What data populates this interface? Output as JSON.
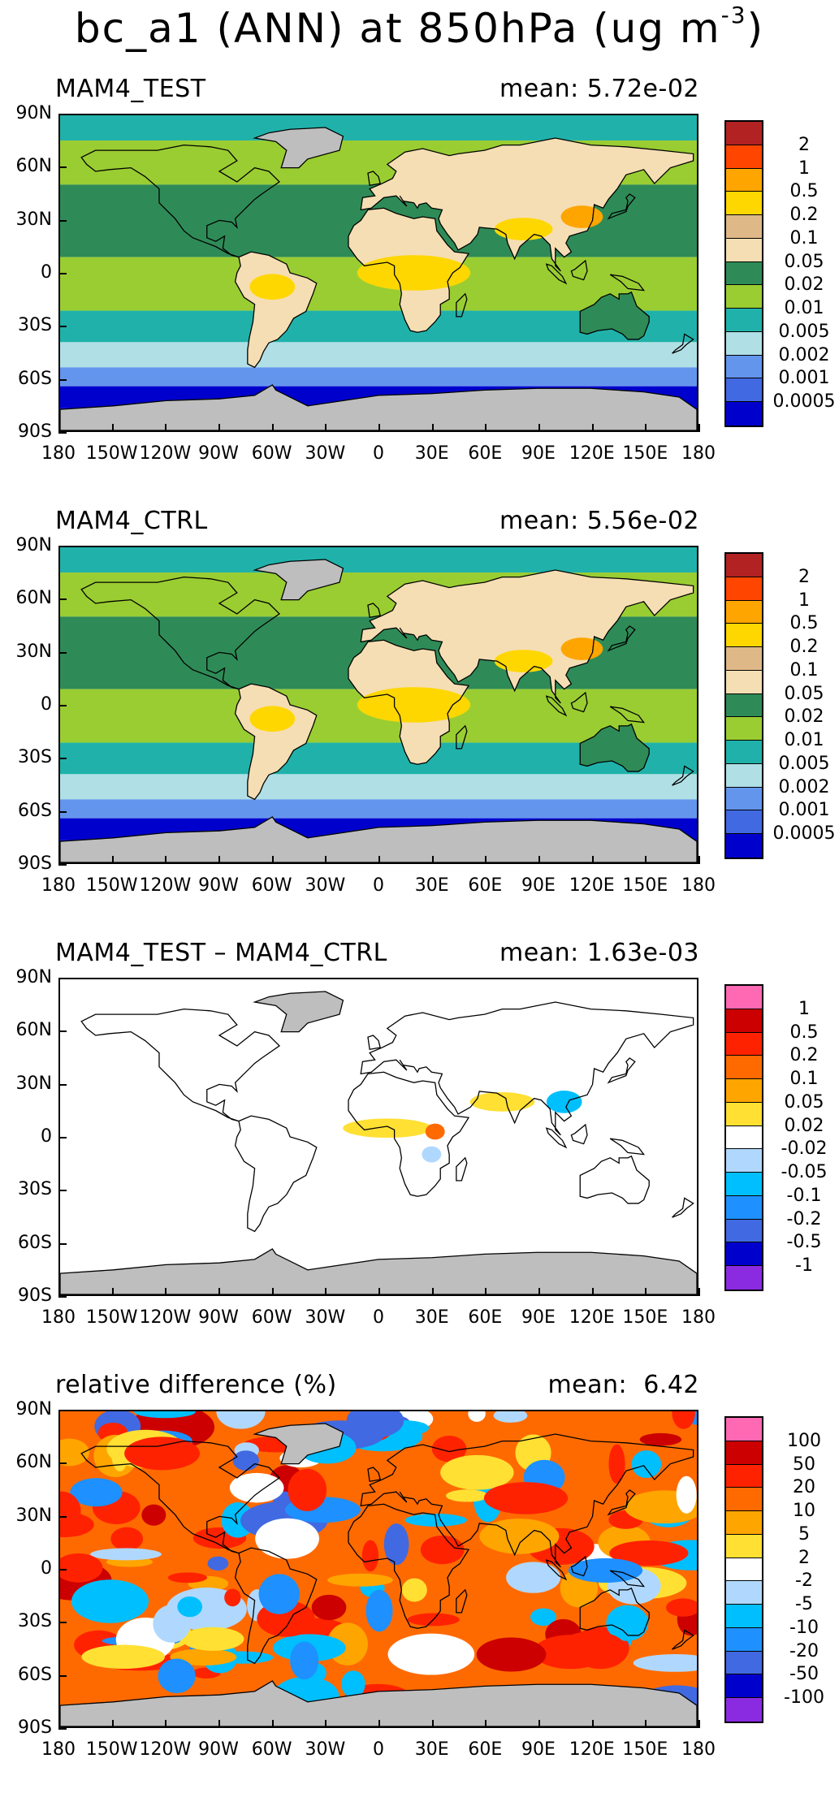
{
  "figure": {
    "title_main": "bc_a1 (ANN) at 850hPa (ug m",
    "title_exp": "-3",
    "title_close": ")"
  },
  "lat_labels": [
    "90N",
    "60N",
    "30N",
    "0",
    "30S",
    "60S",
    "90S"
  ],
  "lon_labels": [
    "180",
    "150W",
    "120W",
    "90W",
    "60W",
    "30W",
    "0",
    "30E",
    "60E",
    "90E",
    "120E",
    "150E",
    "180"
  ],
  "panels": [
    {
      "id": "test",
      "title": "MAM4_TEST",
      "mean_text": "mean: 5.72e-02",
      "colorbar": {
        "colors": [
          "#b22222",
          "#ff4500",
          "#ffa500",
          "#ffd700",
          "#deb887",
          "#f5deb3",
          "#2e8b57",
          "#9acd32",
          "#20b2aa",
          "#b0e0e6",
          "#6495ed",
          "#4169e1",
          "#0000cd"
        ],
        "labels": [
          "2",
          "1",
          "0.5",
          "0.2",
          "0.1",
          "0.05",
          "0.02",
          "0.01",
          "0.005",
          "0.002",
          "0.001",
          "0.0005"
        ]
      }
    },
    {
      "id": "ctrl",
      "title": "MAM4_CTRL",
      "mean_text": "mean: 5.56e-02",
      "colorbar": {
        "colors": [
          "#b22222",
          "#ff4500",
          "#ffa500",
          "#ffd700",
          "#deb887",
          "#f5deb3",
          "#2e8b57",
          "#9acd32",
          "#20b2aa",
          "#b0e0e6",
          "#6495ed",
          "#4169e1",
          "#0000cd"
        ],
        "labels": [
          "2",
          "1",
          "0.5",
          "0.2",
          "0.1",
          "0.05",
          "0.02",
          "0.01",
          "0.005",
          "0.002",
          "0.001",
          "0.0005"
        ]
      }
    },
    {
      "id": "diff",
      "title": "MAM4_TEST – MAM4_CTRL",
      "mean_text": "mean: 1.63e-03",
      "colorbar": {
        "colors": [
          "#ff69b4",
          "#cc0000",
          "#ff2200",
          "#ff6a00",
          "#ffa500",
          "#ffe033",
          "#ffffff",
          "#b0d8ff",
          "#00bfff",
          "#1e90ff",
          "#4169e1",
          "#0000cd",
          "#8a2be2"
        ],
        "labels": [
          "1",
          "0.5",
          "0.2",
          "0.1",
          "0.05",
          "0.02",
          "-0.02",
          "-0.05",
          "-0.1",
          "-0.2",
          "-0.5",
          "-1"
        ]
      }
    },
    {
      "id": "rel",
      "title": "relative difference (%)",
      "mean_text": "mean:  6.42",
      "colorbar": {
        "colors": [
          "#ff69b4",
          "#cc0000",
          "#ff2200",
          "#ff6a00",
          "#ffa500",
          "#ffe033",
          "#ffffff",
          "#b0d8ff",
          "#00bfff",
          "#1e90ff",
          "#4169e1",
          "#0000cd",
          "#8a2be2"
        ],
        "labels": [
          "100",
          "50",
          "20",
          "10",
          "5",
          "2",
          "-2",
          "-5",
          "-10",
          "-20",
          "-50",
          "-100"
        ]
      }
    }
  ],
  "colors": {
    "land_missing": "#bebebe",
    "coast": "#000000"
  }
}
